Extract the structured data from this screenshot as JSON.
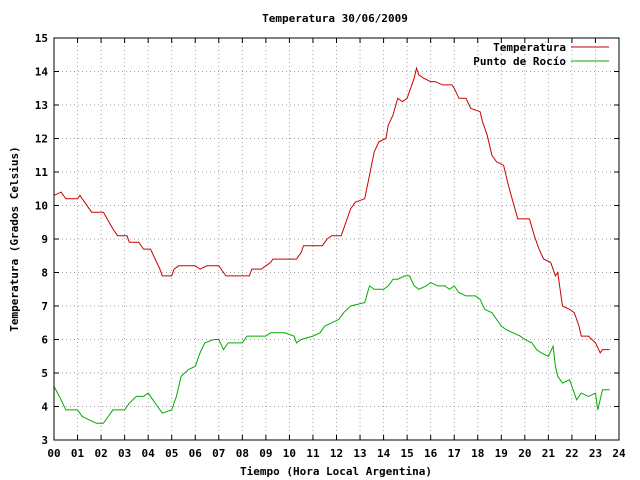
{
  "chart_data": {
    "type": "line",
    "title": "Temperatura 30/06/2009",
    "xlabel": "Tiempo (Hora Local Argentina)",
    "ylabel": "Temperatura (Grados Celsius)",
    "xlim": [
      0,
      24
    ],
    "ylim": [
      3,
      15
    ],
    "x_tick_labels": [
      "00",
      "01",
      "02",
      "03",
      "04",
      "05",
      "06",
      "07",
      "08",
      "09",
      "10",
      "11",
      "12",
      "13",
      "14",
      "15",
      "16",
      "17",
      "18",
      "19",
      "20",
      "21",
      "22",
      "23",
      "24"
    ],
    "y_tick_labels": [
      "3",
      "4",
      "5",
      "6",
      "7",
      "8",
      "9",
      "10",
      "11",
      "12",
      "13",
      "14",
      "15"
    ],
    "grid": true,
    "legend_position": "top-right",
    "series": [
      {
        "name": "Temperatura",
        "color": "#cc0000",
        "points": [
          [
            0.0,
            10.3
          ],
          [
            0.3,
            10.4
          ],
          [
            0.5,
            10.2
          ],
          [
            1.0,
            10.2
          ],
          [
            1.1,
            10.3
          ],
          [
            1.3,
            10.1
          ],
          [
            1.6,
            9.8
          ],
          [
            2.1,
            9.8
          ],
          [
            2.5,
            9.3
          ],
          [
            2.7,
            9.1
          ],
          [
            3.1,
            9.1
          ],
          [
            3.2,
            8.9
          ],
          [
            3.6,
            8.9
          ],
          [
            3.8,
            8.7
          ],
          [
            4.1,
            8.7
          ],
          [
            4.3,
            8.4
          ],
          [
            4.5,
            8.1
          ],
          [
            4.6,
            7.9
          ],
          [
            5.0,
            7.9
          ],
          [
            5.1,
            8.1
          ],
          [
            5.3,
            8.2
          ],
          [
            6.0,
            8.2
          ],
          [
            6.2,
            8.1
          ],
          [
            6.5,
            8.2
          ],
          [
            7.0,
            8.2
          ],
          [
            7.2,
            8.0
          ],
          [
            7.3,
            7.9
          ],
          [
            8.3,
            7.9
          ],
          [
            8.4,
            8.1
          ],
          [
            8.8,
            8.1
          ],
          [
            9.2,
            8.3
          ],
          [
            9.3,
            8.4
          ],
          [
            10.3,
            8.4
          ],
          [
            10.5,
            8.6
          ],
          [
            10.6,
            8.8
          ],
          [
            11.4,
            8.8
          ],
          [
            11.6,
            9.0
          ],
          [
            11.8,
            9.1
          ],
          [
            12.2,
            9.1
          ],
          [
            12.4,
            9.5
          ],
          [
            12.6,
            9.9
          ],
          [
            12.8,
            10.1
          ],
          [
            13.2,
            10.2
          ],
          [
            13.4,
            10.9
          ],
          [
            13.6,
            11.6
          ],
          [
            13.8,
            11.9
          ],
          [
            14.1,
            12.0
          ],
          [
            14.2,
            12.4
          ],
          [
            14.4,
            12.7
          ],
          [
            14.6,
            13.2
          ],
          [
            14.8,
            13.1
          ],
          [
            15.0,
            13.2
          ],
          [
            15.2,
            13.6
          ],
          [
            15.3,
            13.8
          ],
          [
            15.4,
            14.1
          ],
          [
            15.5,
            13.9
          ],
          [
            15.7,
            13.8
          ],
          [
            16.0,
            13.7
          ],
          [
            16.2,
            13.7
          ],
          [
            16.5,
            13.6
          ],
          [
            16.9,
            13.6
          ],
          [
            17.0,
            13.5
          ],
          [
            17.2,
            13.2
          ],
          [
            17.5,
            13.2
          ],
          [
            17.7,
            12.9
          ],
          [
            18.1,
            12.8
          ],
          [
            18.2,
            12.5
          ],
          [
            18.4,
            12.1
          ],
          [
            18.6,
            11.5
          ],
          [
            18.8,
            11.3
          ],
          [
            19.1,
            11.2
          ],
          [
            19.3,
            10.6
          ],
          [
            19.5,
            10.1
          ],
          [
            19.7,
            9.6
          ],
          [
            20.2,
            9.6
          ],
          [
            20.4,
            9.1
          ],
          [
            20.6,
            8.7
          ],
          [
            20.8,
            8.4
          ],
          [
            21.1,
            8.3
          ],
          [
            21.3,
            7.9
          ],
          [
            21.4,
            8.0
          ],
          [
            21.5,
            7.5
          ],
          [
            21.6,
            7.0
          ],
          [
            21.9,
            6.9
          ],
          [
            22.1,
            6.8
          ],
          [
            22.3,
            6.4
          ],
          [
            22.4,
            6.1
          ],
          [
            22.7,
            6.1
          ],
          [
            23.0,
            5.9
          ],
          [
            23.2,
            5.6
          ],
          [
            23.3,
            5.7
          ],
          [
            23.6,
            5.7
          ]
        ]
      },
      {
        "name": "Punto de Rocío",
        "color": "#00aa00",
        "points": [
          [
            0.0,
            4.6
          ],
          [
            0.3,
            4.2
          ],
          [
            0.5,
            3.9
          ],
          [
            1.0,
            3.9
          ],
          [
            1.2,
            3.7
          ],
          [
            1.5,
            3.6
          ],
          [
            1.8,
            3.5
          ],
          [
            2.1,
            3.5
          ],
          [
            2.3,
            3.7
          ],
          [
            2.5,
            3.9
          ],
          [
            3.0,
            3.9
          ],
          [
            3.2,
            4.1
          ],
          [
            3.5,
            4.3
          ],
          [
            3.8,
            4.3
          ],
          [
            4.0,
            4.4
          ],
          [
            4.2,
            4.2
          ],
          [
            4.4,
            4.0
          ],
          [
            4.6,
            3.8
          ],
          [
            5.0,
            3.9
          ],
          [
            5.2,
            4.3
          ],
          [
            5.4,
            4.9
          ],
          [
            5.7,
            5.1
          ],
          [
            6.0,
            5.2
          ],
          [
            6.2,
            5.6
          ],
          [
            6.4,
            5.9
          ],
          [
            6.8,
            6.0
          ],
          [
            7.0,
            6.0
          ],
          [
            7.2,
            5.7
          ],
          [
            7.4,
            5.9
          ],
          [
            8.0,
            5.9
          ],
          [
            8.2,
            6.1
          ],
          [
            9.0,
            6.1
          ],
          [
            9.2,
            6.2
          ],
          [
            9.8,
            6.2
          ],
          [
            10.2,
            6.1
          ],
          [
            10.3,
            5.9
          ],
          [
            10.5,
            6.0
          ],
          [
            11.0,
            6.1
          ],
          [
            11.3,
            6.2
          ],
          [
            11.5,
            6.4
          ],
          [
            11.8,
            6.5
          ],
          [
            12.1,
            6.6
          ],
          [
            12.3,
            6.8
          ],
          [
            12.6,
            7.0
          ],
          [
            13.2,
            7.1
          ],
          [
            13.4,
            7.6
          ],
          [
            13.6,
            7.5
          ],
          [
            14.0,
            7.5
          ],
          [
            14.2,
            7.6
          ],
          [
            14.4,
            7.8
          ],
          [
            14.6,
            7.8
          ],
          [
            14.9,
            7.9
          ],
          [
            15.1,
            7.9
          ],
          [
            15.3,
            7.6
          ],
          [
            15.5,
            7.5
          ],
          [
            15.8,
            7.6
          ],
          [
            16.0,
            7.7
          ],
          [
            16.3,
            7.6
          ],
          [
            16.6,
            7.6
          ],
          [
            16.8,
            7.5
          ],
          [
            17.0,
            7.6
          ],
          [
            17.2,
            7.4
          ],
          [
            17.5,
            7.3
          ],
          [
            17.9,
            7.3
          ],
          [
            18.1,
            7.2
          ],
          [
            18.3,
            6.9
          ],
          [
            18.6,
            6.8
          ],
          [
            18.8,
            6.6
          ],
          [
            19.0,
            6.4
          ],
          [
            19.2,
            6.3
          ],
          [
            19.5,
            6.2
          ],
          [
            19.8,
            6.1
          ],
          [
            20.0,
            6.0
          ],
          [
            20.3,
            5.9
          ],
          [
            20.5,
            5.7
          ],
          [
            20.7,
            5.6
          ],
          [
            21.0,
            5.5
          ],
          [
            21.2,
            5.8
          ],
          [
            21.3,
            5.2
          ],
          [
            21.4,
            4.9
          ],
          [
            21.6,
            4.7
          ],
          [
            21.9,
            4.8
          ],
          [
            22.0,
            4.6
          ],
          [
            22.2,
            4.2
          ],
          [
            22.4,
            4.4
          ],
          [
            22.7,
            4.3
          ],
          [
            23.0,
            4.4
          ],
          [
            23.1,
            3.9
          ],
          [
            23.3,
            4.5
          ],
          [
            23.6,
            4.5
          ]
        ]
      }
    ]
  }
}
